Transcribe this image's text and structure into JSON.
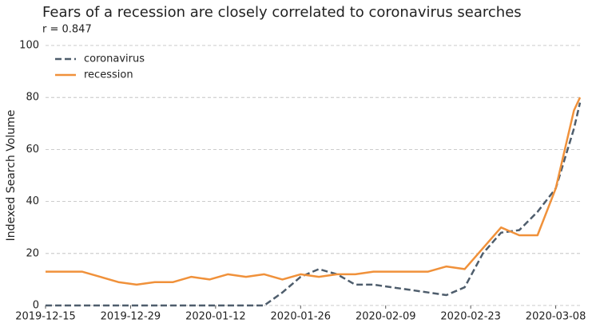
{
  "chart_data": {
    "type": "line",
    "title": "Fears of a recession are closely correlated to coronavirus searches",
    "subtitle": "r = 0.847",
    "y_label": "Indexed Search Volume",
    "x": [
      "2019-12-15",
      "2019-12-18",
      "2019-12-21",
      "2019-12-24",
      "2019-12-27",
      "2019-12-30",
      "2020-01-02",
      "2020-01-05",
      "2020-01-08",
      "2020-01-11",
      "2020-01-14",
      "2020-01-17",
      "2020-01-20",
      "2020-01-23",
      "2020-01-26",
      "2020-01-29",
      "2020-02-01",
      "2020-02-04",
      "2020-02-07",
      "2020-02-10",
      "2020-02-13",
      "2020-02-16",
      "2020-02-19",
      "2020-02-22",
      "2020-02-25",
      "2020-02-28",
      "2020-03-02",
      "2020-03-05",
      "2020-03-08",
      "2020-03-11",
      "2020-03-12"
    ],
    "series": [
      {
        "name": "coronavirus",
        "color": "#4e5d6c",
        "linestyle": "dashed",
        "values": [
          0,
          0,
          0,
          0,
          0,
          0,
          0,
          0,
          0,
          0,
          0,
          0,
          0,
          5,
          11,
          14,
          12,
          8,
          8,
          7,
          6,
          5,
          4,
          7,
          20,
          28,
          29,
          36,
          45,
          68,
          78
        ]
      },
      {
        "name": "recession",
        "color": "#f0913a",
        "linestyle": "solid",
        "values": [
          13,
          13,
          13,
          11,
          9,
          8,
          9,
          9,
          11,
          10,
          12,
          11,
          12,
          10,
          12,
          11,
          12,
          12,
          13,
          13,
          13,
          13,
          15,
          14,
          22,
          30,
          27,
          27,
          45,
          75,
          80
        ]
      }
    ],
    "xlim": [
      "2019-12-15",
      "2020-03-12"
    ],
    "xticks": [
      "2019-12-15",
      "2019-12-29",
      "2020-01-12",
      "2020-01-26",
      "2020-02-09",
      "2020-02-23",
      "2020-03-08"
    ],
    "ylim": [
      0,
      100
    ],
    "yticks": [
      0,
      20,
      40,
      60,
      80,
      100
    ],
    "grid": true,
    "legend": "upper-left"
  }
}
